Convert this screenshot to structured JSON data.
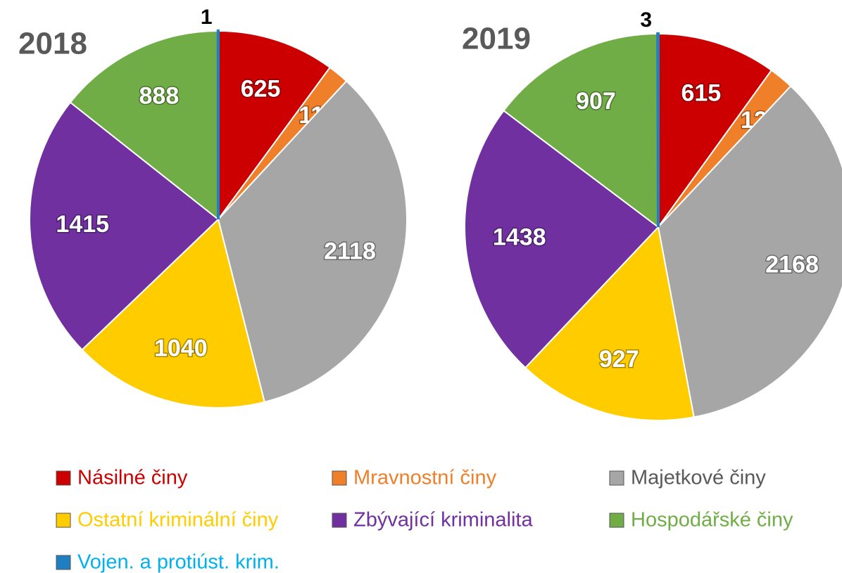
{
  "legend": {
    "categories": [
      "Násilné činy",
      "Mravnostní činy",
      "Majetkové činy",
      "Ostatní kriminální činy",
      "Zbývající kriminalita",
      "Hospodářské činy",
      "Vojen. a protiúst. krim."
    ],
    "colors": [
      "#cc0000",
      "#f07f2a",
      "#a6a6a6",
      "#ffcc00",
      "#7030a0",
      "#70ad47",
      "#1f7fc0"
    ]
  },
  "chart_data": [
    {
      "type": "pie",
      "title": "2018",
      "values": [
        625,
        112,
        2118,
        1040,
        1415,
        888,
        1
      ]
    },
    {
      "type": "pie",
      "title": "2019",
      "values": [
        615,
        127,
        2168,
        927,
        1438,
        907,
        3
      ]
    }
  ]
}
